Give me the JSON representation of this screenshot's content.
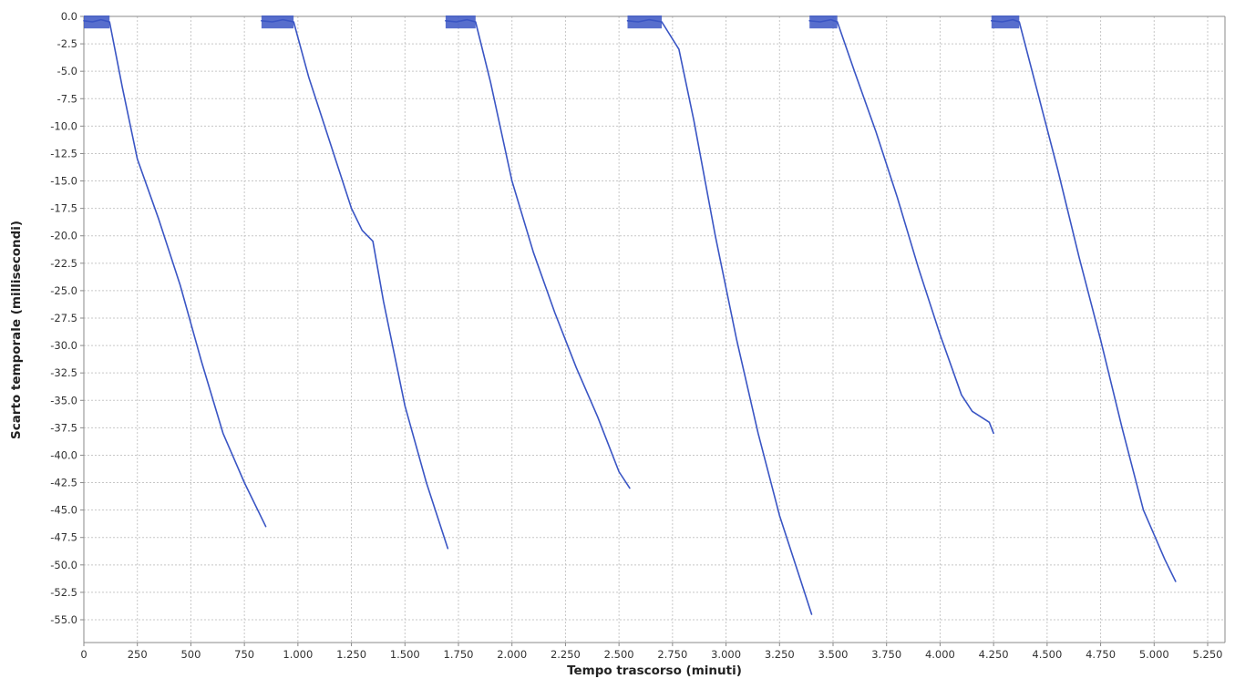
{
  "chart_data": {
    "type": "line",
    "title": "",
    "xlabel": "Tempo trascorso (minuti)",
    "ylabel": "Scarto temporale (millisecondi)",
    "xlim": [
      0,
      5300
    ],
    "ylim": [
      -57.5,
      0
    ],
    "grid": true,
    "legend": "none",
    "x_ticks": [
      0,
      250,
      500,
      750,
      1000,
      1250,
      1500,
      1750,
      2000,
      2250,
      2500,
      2750,
      3000,
      3250,
      3500,
      3750,
      4000,
      4250,
      4500,
      4750,
      5000,
      5250
    ],
    "x_tick_labels": [
      "0",
      "250",
      "500",
      "750",
      "1.000",
      "1.250",
      "1.500",
      "1.750",
      "2.000",
      "2.250",
      "2.500",
      "2.750",
      "3.000",
      "3.250",
      "3.500",
      "3.750",
      "4.000",
      "4.250",
      "4.500",
      "4.750",
      "5.000",
      "5.250"
    ],
    "y_ticks": [
      0,
      -2.5,
      -5,
      -7.5,
      -10,
      -12.5,
      -15,
      -17.5,
      -20,
      -22.5,
      -25,
      -27.5,
      -30,
      -32.5,
      -35,
      -37.5,
      -40,
      -42.5,
      -45,
      -47.5,
      -50,
      -52.5,
      -55
    ],
    "y_tick_labels": [
      "0.0",
      "-2.5",
      "-5.0",
      "-7.5",
      "-10.0",
      "-12.5",
      "-15.0",
      "-17.5",
      "-20.0",
      "-22.5",
      "-25.0",
      "-27.5",
      "-30.0",
      "-32.5",
      "-35.0",
      "-37.5",
      "-40.0",
      "-42.5",
      "-45.0",
      "-47.5",
      "-50.0",
      "-52.5",
      "-55.0"
    ],
    "colors": {
      "series": "#3a55c4",
      "grid": "#c7c7c7",
      "axis": "#8a8a8a"
    },
    "series": [
      {
        "x": [
          0,
          40,
          80,
          120,
          180,
          250,
          350,
          450,
          550,
          650,
          750,
          850
        ],
        "y": [
          -0.4,
          -0.5,
          -0.3,
          -0.5,
          -6.5,
          -13.0,
          -18.5,
          -24.5,
          -31.5,
          -38.0,
          -42.5,
          -46.5
        ]
      },
      {
        "x": [
          830,
          880,
          930,
          980,
          1050,
          1150,
          1250,
          1300,
          1350,
          1400,
          1500,
          1600,
          1700
        ],
        "y": [
          -0.4,
          -0.5,
          -0.3,
          -0.5,
          -5.5,
          -11.5,
          -17.5,
          -19.5,
          -20.5,
          -26.0,
          -35.5,
          -42.5,
          -48.5
        ]
      },
      {
        "x": [
          1690,
          1740,
          1790,
          1830,
          1900,
          2000,
          2100,
          2200,
          2300,
          2400,
          2500,
          2550
        ],
        "y": [
          -0.4,
          -0.5,
          -0.3,
          -0.5,
          -6.0,
          -15.0,
          -21.5,
          -27.0,
          -32.0,
          -36.5,
          -41.5,
          -43.0
        ]
      },
      {
        "x": [
          2540,
          2590,
          2640,
          2700,
          2780,
          2850,
          2950,
          3050,
          3150,
          3250,
          3350,
          3400
        ],
        "y": [
          -0.4,
          -0.5,
          -0.3,
          -0.5,
          -3.0,
          -9.5,
          -20.0,
          -29.5,
          -38.0,
          -45.5,
          -51.5,
          -54.5
        ]
      },
      {
        "x": [
          3390,
          3440,
          3490,
          3520,
          3600,
          3700,
          3800,
          3900,
          4000,
          4100,
          4150,
          4230,
          4250
        ],
        "y": [
          -0.4,
          -0.5,
          -0.3,
          -0.5,
          -5.0,
          -10.5,
          -16.5,
          -23.0,
          -29.0,
          -34.5,
          -36.0,
          -37.0,
          -38.0
        ]
      },
      {
        "x": [
          4240,
          4290,
          4340,
          4370,
          4450,
          4550,
          4650,
          4750,
          4850,
          4950,
          5050,
          5100
        ],
        "y": [
          -0.4,
          -0.5,
          -0.3,
          -0.5,
          -6.5,
          -14.0,
          -22.0,
          -29.5,
          -37.5,
          -45.0,
          -49.5,
          -51.5
        ]
      }
    ]
  }
}
